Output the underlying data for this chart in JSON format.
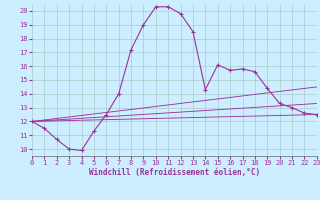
{
  "xlabel": "Windchill (Refroidissement éolien,°C)",
  "bg_color": "#cceeff",
  "line_color": "#993399",
  "grid_color": "#aacccc",
  "xlim": [
    0,
    23
  ],
  "ylim": [
    9.5,
    20.5
  ],
  "yticks": [
    10,
    11,
    12,
    13,
    14,
    15,
    16,
    17,
    18,
    19,
    20
  ],
  "xticks": [
    0,
    1,
    2,
    3,
    4,
    5,
    6,
    7,
    8,
    9,
    10,
    11,
    12,
    13,
    14,
    15,
    16,
    17,
    18,
    19,
    20,
    21,
    22,
    23
  ],
  "line1_x": [
    0,
    1,
    2,
    3,
    4,
    5,
    6,
    7,
    8,
    9,
    10,
    11,
    12,
    13,
    14,
    15,
    16,
    17,
    18,
    19,
    20,
    21,
    22,
    23
  ],
  "line1_y": [
    12.0,
    11.5,
    10.7,
    10.0,
    9.9,
    11.3,
    12.5,
    14.0,
    17.2,
    19.0,
    20.3,
    20.3,
    19.8,
    18.5,
    14.3,
    16.1,
    15.7,
    15.8,
    15.6,
    14.4,
    13.3,
    13.0,
    12.6,
    12.5
  ],
  "line2_x": [
    0,
    23
  ],
  "line2_y": [
    12.0,
    12.5
  ],
  "line3_x": [
    0,
    23
  ],
  "line3_y": [
    12.0,
    13.3
  ],
  "line4_x": [
    0,
    23
  ],
  "line4_y": [
    12.0,
    14.5
  ],
  "tick_fontsize": 5.0,
  "xlabel_fontsize": 5.5,
  "marker_size": 2.5,
  "line_width": 0.8
}
